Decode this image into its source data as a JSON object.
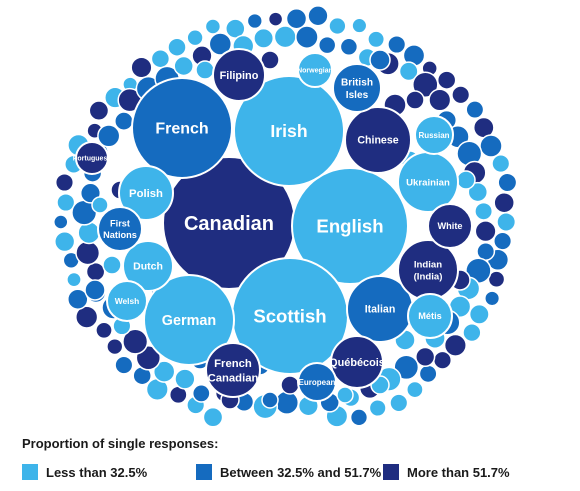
{
  "chart_data": {
    "type": "packed-bubble",
    "title": "",
    "colors": {
      "low": "#3eb4ea",
      "mid": "#156bbf",
      "high": "#1f2d80"
    },
    "bubbles": [
      {
        "label": "Canadian",
        "category": "high",
        "size": 66
      },
      {
        "label": "English",
        "category": "low",
        "size": 58
      },
      {
        "label": "Scottish",
        "category": "low",
        "size": 58
      },
      {
        "label": "Irish",
        "category": "low",
        "size": 55
      },
      {
        "label": "French",
        "category": "mid",
        "size": 50
      },
      {
        "label": "German",
        "category": "low",
        "size": 45
      },
      {
        "label": "Chinese",
        "category": "high",
        "size": 33
      },
      {
        "label": "Italian",
        "category": "mid",
        "size": 33
      },
      {
        "label": "Indian (India)",
        "category": "high",
        "size": 30
      },
      {
        "label": "Ukrainian",
        "category": "low",
        "size": 30
      },
      {
        "label": "Polish",
        "category": "low",
        "size": 27
      },
      {
        "label": "Dutch",
        "category": "low",
        "size": 25
      },
      {
        "label": "French Canadian",
        "category": "high",
        "size": 27
      },
      {
        "label": "Québécois",
        "category": "high",
        "size": 26
      },
      {
        "label": "Filipino",
        "category": "high",
        "size": 26
      },
      {
        "label": "British Isles",
        "category": "mid",
        "size": 24
      },
      {
        "label": "White",
        "category": "high",
        "size": 22
      },
      {
        "label": "First Nations",
        "category": "mid",
        "size": 22
      },
      {
        "label": "Métis",
        "category": "low",
        "size": 22
      },
      {
        "label": "Welsh",
        "category": "low",
        "size": 20
      },
      {
        "label": "Russian",
        "category": "low",
        "size": 19
      },
      {
        "label": "European",
        "category": "mid",
        "size": 19
      },
      {
        "label": "Norwegian",
        "category": "low",
        "size": 17
      },
      {
        "label": "Portuguese",
        "category": "high",
        "size": 16
      }
    ]
  },
  "legend": {
    "title": "Proportion of single responses:",
    "items": [
      {
        "label": "Less than 32.5%",
        "color": "#3eb4ea"
      },
      {
        "label": "Between 32.5% and 51.7%",
        "color": "#156bbf"
      },
      {
        "label": "More than 51.7%",
        "color": "#1f2d80"
      }
    ]
  }
}
